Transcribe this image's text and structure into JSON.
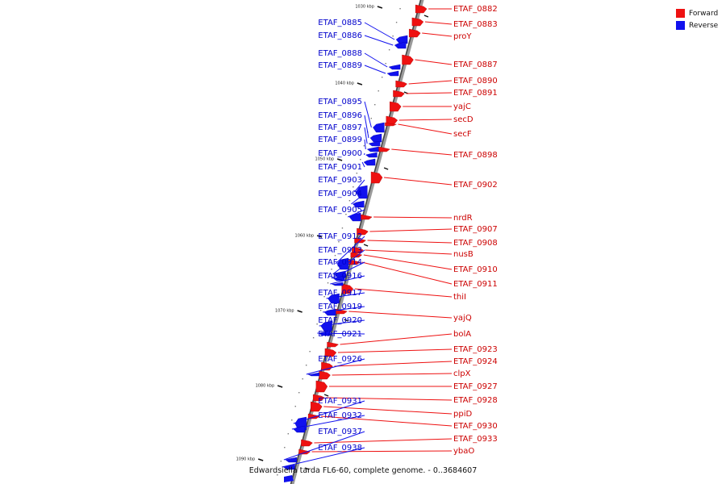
{
  "legend": {
    "items": [
      {
        "label": "Forward",
        "color": "#ee1111"
      },
      {
        "label": "Reverse",
        "color": "#1111ee"
      }
    ]
  },
  "caption": "Edwardsiella tarda FL6-60, complete genome. - 0..3684607",
  "ticks": [
    "1030 kbp",
    "1040 kbp",
    "1050 kbp",
    "1060 kbp",
    "1070 kbp",
    "1080 kbp",
    "1090 kbp"
  ],
  "genes": {
    "forward": [
      "ETAF_0882",
      "ETAF_0883",
      "proY",
      "ETAF_0887",
      "ETAF_0890",
      "ETAF_0891",
      "yajC",
      "secD",
      "secF",
      "ETAF_0898",
      "ETAF_0902",
      "nrdR",
      "ETAF_0907",
      "ETAF_0908",
      "nusB",
      "ETAF_0910",
      "ETAF_0911",
      "thiI",
      "yajQ",
      "bolA",
      "ETAF_0923",
      "ETAF_0924",
      "clpX",
      "ETAF_0927",
      "ETAF_0928",
      "ppiD",
      "ETAF_0930",
      "ETAF_0933",
      "ybaO"
    ],
    "reverse": [
      "ETAF_0885",
      "ETAF_0886",
      "ETAF_0888",
      "ETAF_0889",
      "ETAF_0895",
      "ETAF_0896",
      "ETAF_0897",
      "ETAF_0899",
      "ETAF_0900",
      "ETAF_0901",
      "ETAF_0903",
      "ETAF_0904",
      "ETAF_0905",
      "ETAF_0912",
      "ETAF_0913",
      "ETAF_0914",
      "ETAF_0916",
      "ETAF_0917",
      "ETAF_0919",
      "ETAF_0920",
      "ETAF_0921",
      "ETAF_0926",
      "ETAF_0931",
      "ETAF_0932",
      "ETAF_0937",
      "ETAF_0938"
    ]
  }
}
